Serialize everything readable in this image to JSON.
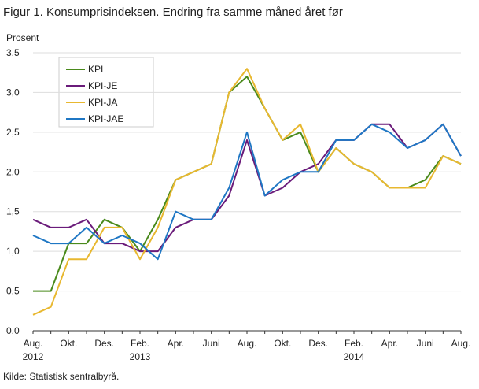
{
  "chart_data": {
    "type": "line",
    "title": "Figur 1. Konsumprisindeksen. Endring fra samme måned året før",
    "y_label": "Prosent",
    "source": "Kilde: Statistisk sentralbyrå.",
    "categories": [
      "Aug. 2012",
      null,
      "Okt.",
      null,
      "Des.",
      null,
      "Feb. 2013",
      null,
      "Apr.",
      null,
      "Juni",
      null,
      "Aug.",
      null,
      "Okt.",
      null,
      "Des.",
      null,
      "Feb. 2014",
      null,
      "Apr.",
      null,
      "Juni",
      null,
      "Aug."
    ],
    "series": [
      {
        "name": "KPI",
        "color": "#4a8a1c",
        "values": [
          0.5,
          0.5,
          1.1,
          1.1,
          1.4,
          1.3,
          1.0,
          1.4,
          1.9,
          2.0,
          2.1,
          3.0,
          3.2,
          2.8,
          2.4,
          2.5,
          2.0,
          2.3,
          2.1,
          2.0,
          1.8,
          1.8,
          1.9,
          2.2,
          2.1
        ]
      },
      {
        "name": "KPI-JE",
        "color": "#6a1b7a",
        "values": [
          1.4,
          1.3,
          1.3,
          1.4,
          1.1,
          1.1,
          1.0,
          1.0,
          1.3,
          1.4,
          1.4,
          1.7,
          2.4,
          1.7,
          1.8,
          2.0,
          2.1,
          2.4,
          2.4,
          2.6,
          2.6,
          2.3,
          2.4,
          2.6,
          2.2
        ]
      },
      {
        "name": "KPI-JA",
        "color": "#e8b830",
        "values": [
          0.2,
          0.3,
          0.9,
          0.9,
          1.3,
          1.3,
          0.9,
          1.3,
          1.9,
          2.0,
          2.1,
          3.0,
          3.3,
          2.8,
          2.4,
          2.6,
          2.0,
          2.3,
          2.1,
          2.0,
          1.8,
          1.8,
          1.8,
          2.2,
          2.1
        ]
      },
      {
        "name": "KPI-JAE",
        "color": "#1f77c4",
        "values": [
          1.2,
          1.1,
          1.1,
          1.3,
          1.1,
          1.2,
          1.1,
          0.9,
          1.5,
          1.4,
          1.4,
          1.8,
          2.5,
          1.7,
          1.9,
          2.0,
          2.0,
          2.4,
          2.4,
          2.6,
          2.5,
          2.3,
          2.4,
          2.6,
          2.2
        ]
      }
    ],
    "ylim": [
      0,
      3.5
    ],
    "yticks": [
      {
        "value": 0,
        "label": "0,0"
      },
      {
        "value": 0.5,
        "label": "0,5"
      },
      {
        "value": 1,
        "label": "1,0"
      },
      {
        "value": 1.5,
        "label": "1,5"
      },
      {
        "value": 2,
        "label": "2,0"
      },
      {
        "value": 2.5,
        "label": "2,5"
      },
      {
        "value": 3,
        "label": "3,0"
      },
      {
        "value": 3.5,
        "label": "3,5"
      }
    ],
    "grid": true
  }
}
